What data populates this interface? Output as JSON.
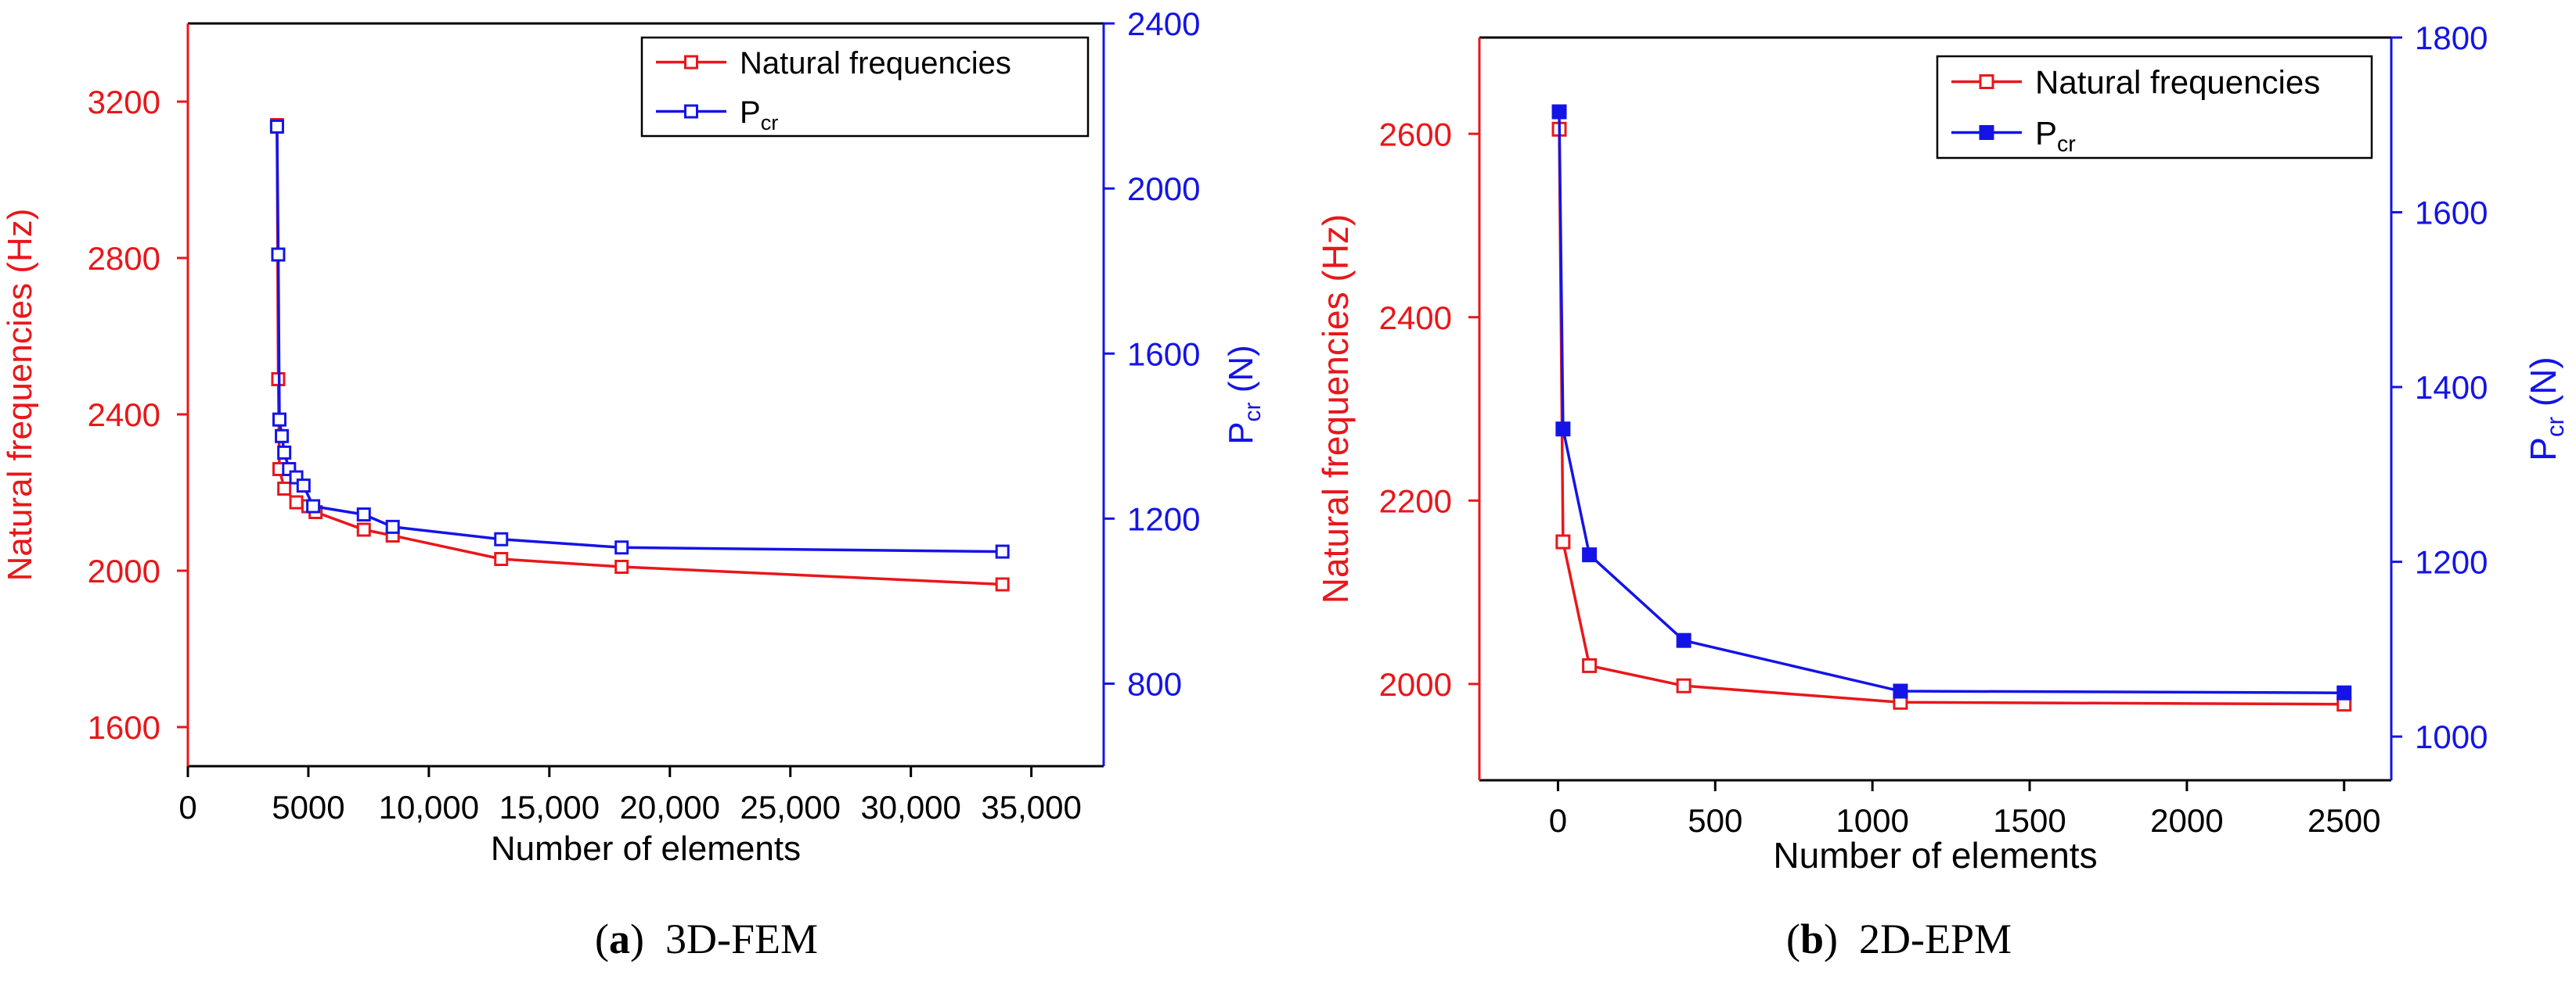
{
  "colors": {
    "freq": "#e8171b",
    "pcr": "#1414e6",
    "axis": "#000000"
  },
  "chart_data": [
    {
      "type": "line",
      "panel": "a",
      "caption_label": "a",
      "caption_text": "3D-FEM",
      "xlabel": "Number of elements",
      "ylabel_left": "Natural frequencies (Hz)",
      "ylabel_right": "P",
      "ylabel_right_sub": "cr",
      "ylabel_right_unit": "(N)",
      "xlim": [
        0,
        38000
      ],
      "ylim_left": [
        1500,
        3400
      ],
      "ylim_right": [
        600,
        2400
      ],
      "xticks": [
        0,
        5000,
        10000,
        15000,
        20000,
        25000,
        30000,
        35000
      ],
      "xtick_labels": [
        "0",
        "5000",
        "10,000",
        "15,000",
        "20,000",
        "25,000",
        "30,000",
        "35,000"
      ],
      "yticks_left": [
        1600,
        2000,
        2400,
        2800,
        3200
      ],
      "yticks_right": [
        800,
        1200,
        1600,
        2000,
        2400
      ],
      "legend": {
        "position": "top-right",
        "entries": [
          "Natural frequencies",
          "P"
        ],
        "sub": "cr"
      },
      "series": [
        {
          "name": "Natural frequencies",
          "axis": "left",
          "marker": "open-square",
          "x": [
            3700,
            3750,
            3800,
            4000,
            4500,
            5000,
            5300,
            7300,
            8500,
            13000,
            18000,
            33800
          ],
          "y": [
            3140,
            2490,
            2260,
            2210,
            2175,
            2165,
            2150,
            2105,
            2090,
            2030,
            2010,
            1965
          ]
        },
        {
          "name": "Pcr",
          "axis": "right",
          "marker": "open-square",
          "x": [
            3700,
            3750,
            3800,
            3900,
            4000,
            4200,
            4500,
            4800,
            5200,
            7300,
            8500,
            13000,
            18000,
            33800
          ],
          "y": [
            2150,
            1840,
            1440,
            1400,
            1360,
            1320,
            1300,
            1280,
            1230,
            1210,
            1180,
            1150,
            1130,
            1120
          ]
        }
      ]
    },
    {
      "type": "line",
      "panel": "b",
      "caption_label": "b",
      "caption_text": "2D-EPM",
      "xlabel": "Number of elements",
      "ylabel_left": "Natural frequencies (Hz)",
      "ylabel_right": "P",
      "ylabel_right_sub": "cr",
      "ylabel_right_unit": "(N)",
      "xlim": [
        -250,
        2650
      ],
      "ylim_left": [
        1895,
        2705
      ],
      "ylim_right": [
        950,
        1800
      ],
      "xticks": [
        0,
        500,
        1000,
        1500,
        2000,
        2500
      ],
      "xtick_labels": [
        "0",
        "500",
        "1000",
        "1500",
        "2000",
        "2500"
      ],
      "yticks_left": [
        2000,
        2200,
        2400,
        2600
      ],
      "yticks_right": [
        1000,
        1200,
        1400,
        1600,
        1800
      ],
      "legend": {
        "position": "top-right",
        "entries": [
          "Natural frequencies",
          "P"
        ],
        "sub": "cr"
      },
      "series": [
        {
          "name": "Natural frequencies",
          "axis": "left",
          "marker": "open-square",
          "x": [
            4,
            16,
            100,
            400,
            1089,
            2500
          ],
          "y": [
            2605,
            2155,
            2020,
            1998,
            1980,
            1978
          ]
        },
        {
          "name": "Pcr",
          "axis": "right",
          "marker": "filled-square",
          "x": [
            4,
            16,
            100,
            400,
            1089,
            2500
          ],
          "y": [
            1715,
            1352,
            1208,
            1110,
            1052,
            1050
          ]
        }
      ]
    }
  ]
}
